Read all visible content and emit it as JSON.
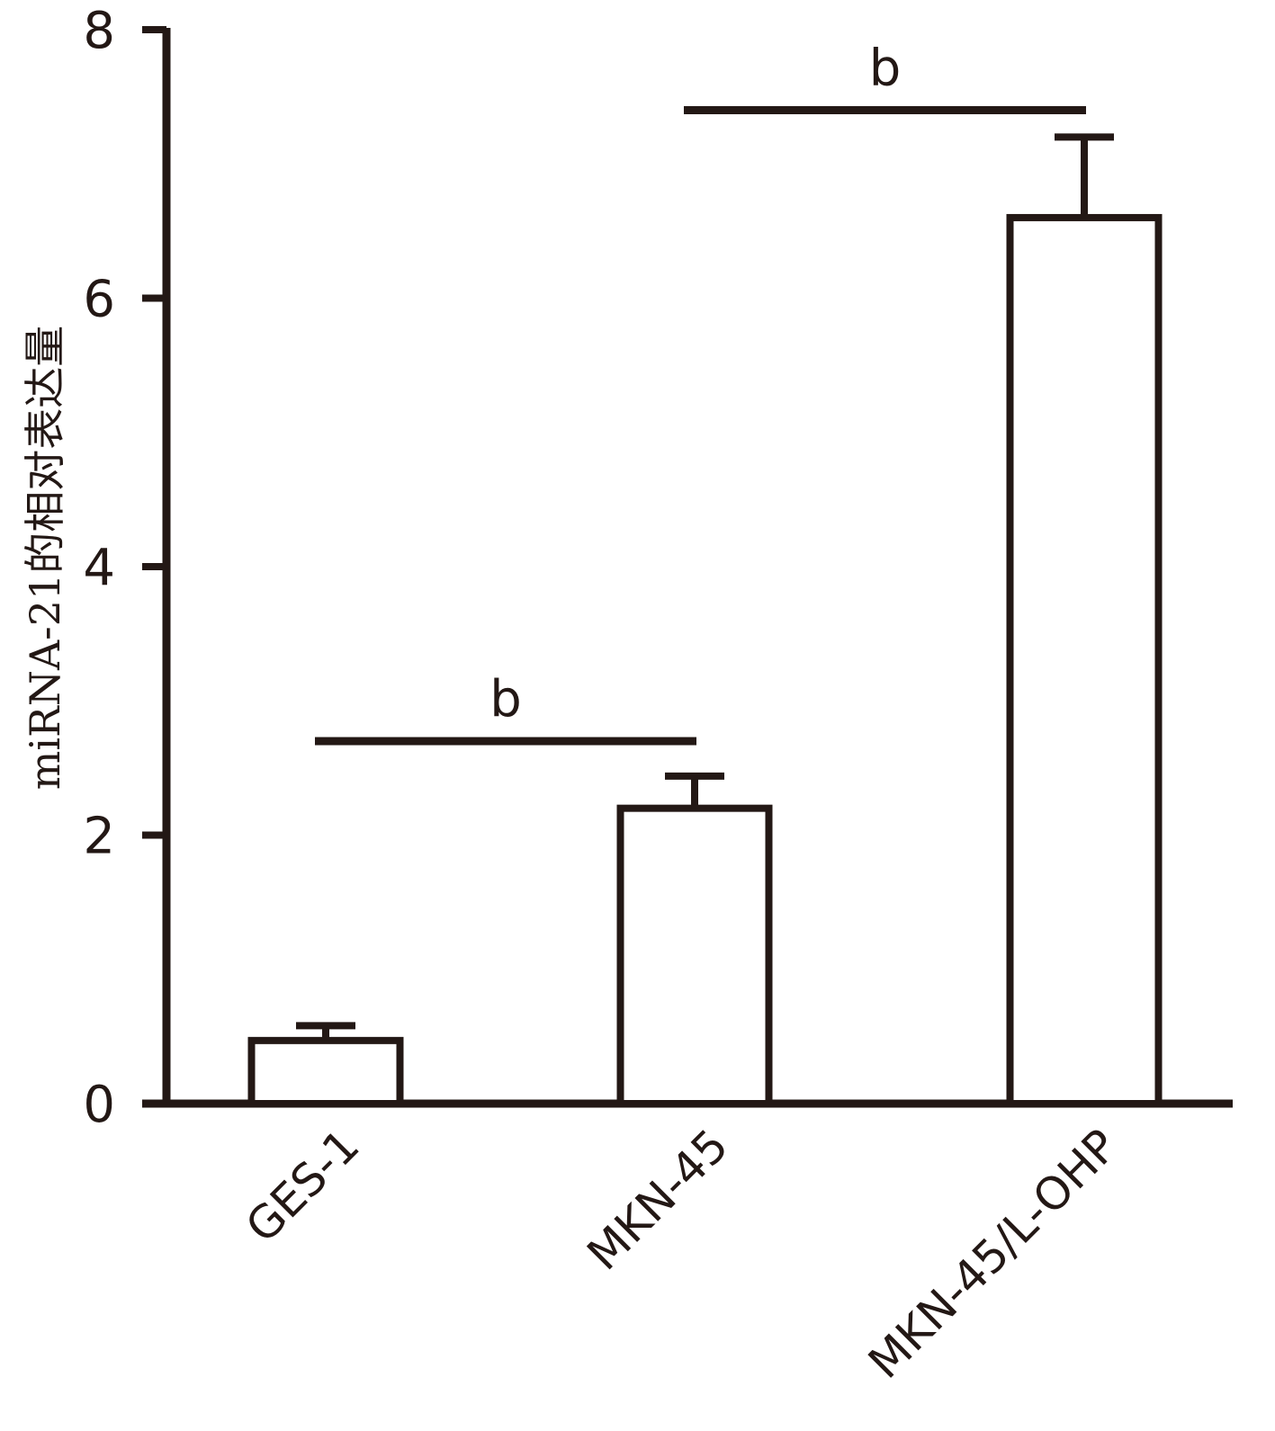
{
  "chart_data": {
    "type": "bar",
    "title": "",
    "xlabel": "",
    "ylabel": "miRNA-21的相对表达量",
    "ylim": [
      0,
      8
    ],
    "yticks": [
      0,
      2,
      4,
      6,
      8
    ],
    "categories": [
      "GES-1",
      "MKN-45",
      "MKN-45/L-OHP"
    ],
    "values": [
      0.47,
      2.2,
      6.6
    ],
    "errors": [
      0.11,
      0.24,
      0.6
    ],
    "grid": false,
    "significance": [
      {
        "from": 0,
        "to": 1,
        "y": 2.7,
        "label": "b"
      },
      {
        "from": 1,
        "to": 2,
        "y": 7.4,
        "label": "b"
      }
    ]
  },
  "colors": {
    "ink": "#231815",
    "bar_fill": "#ffffff"
  }
}
